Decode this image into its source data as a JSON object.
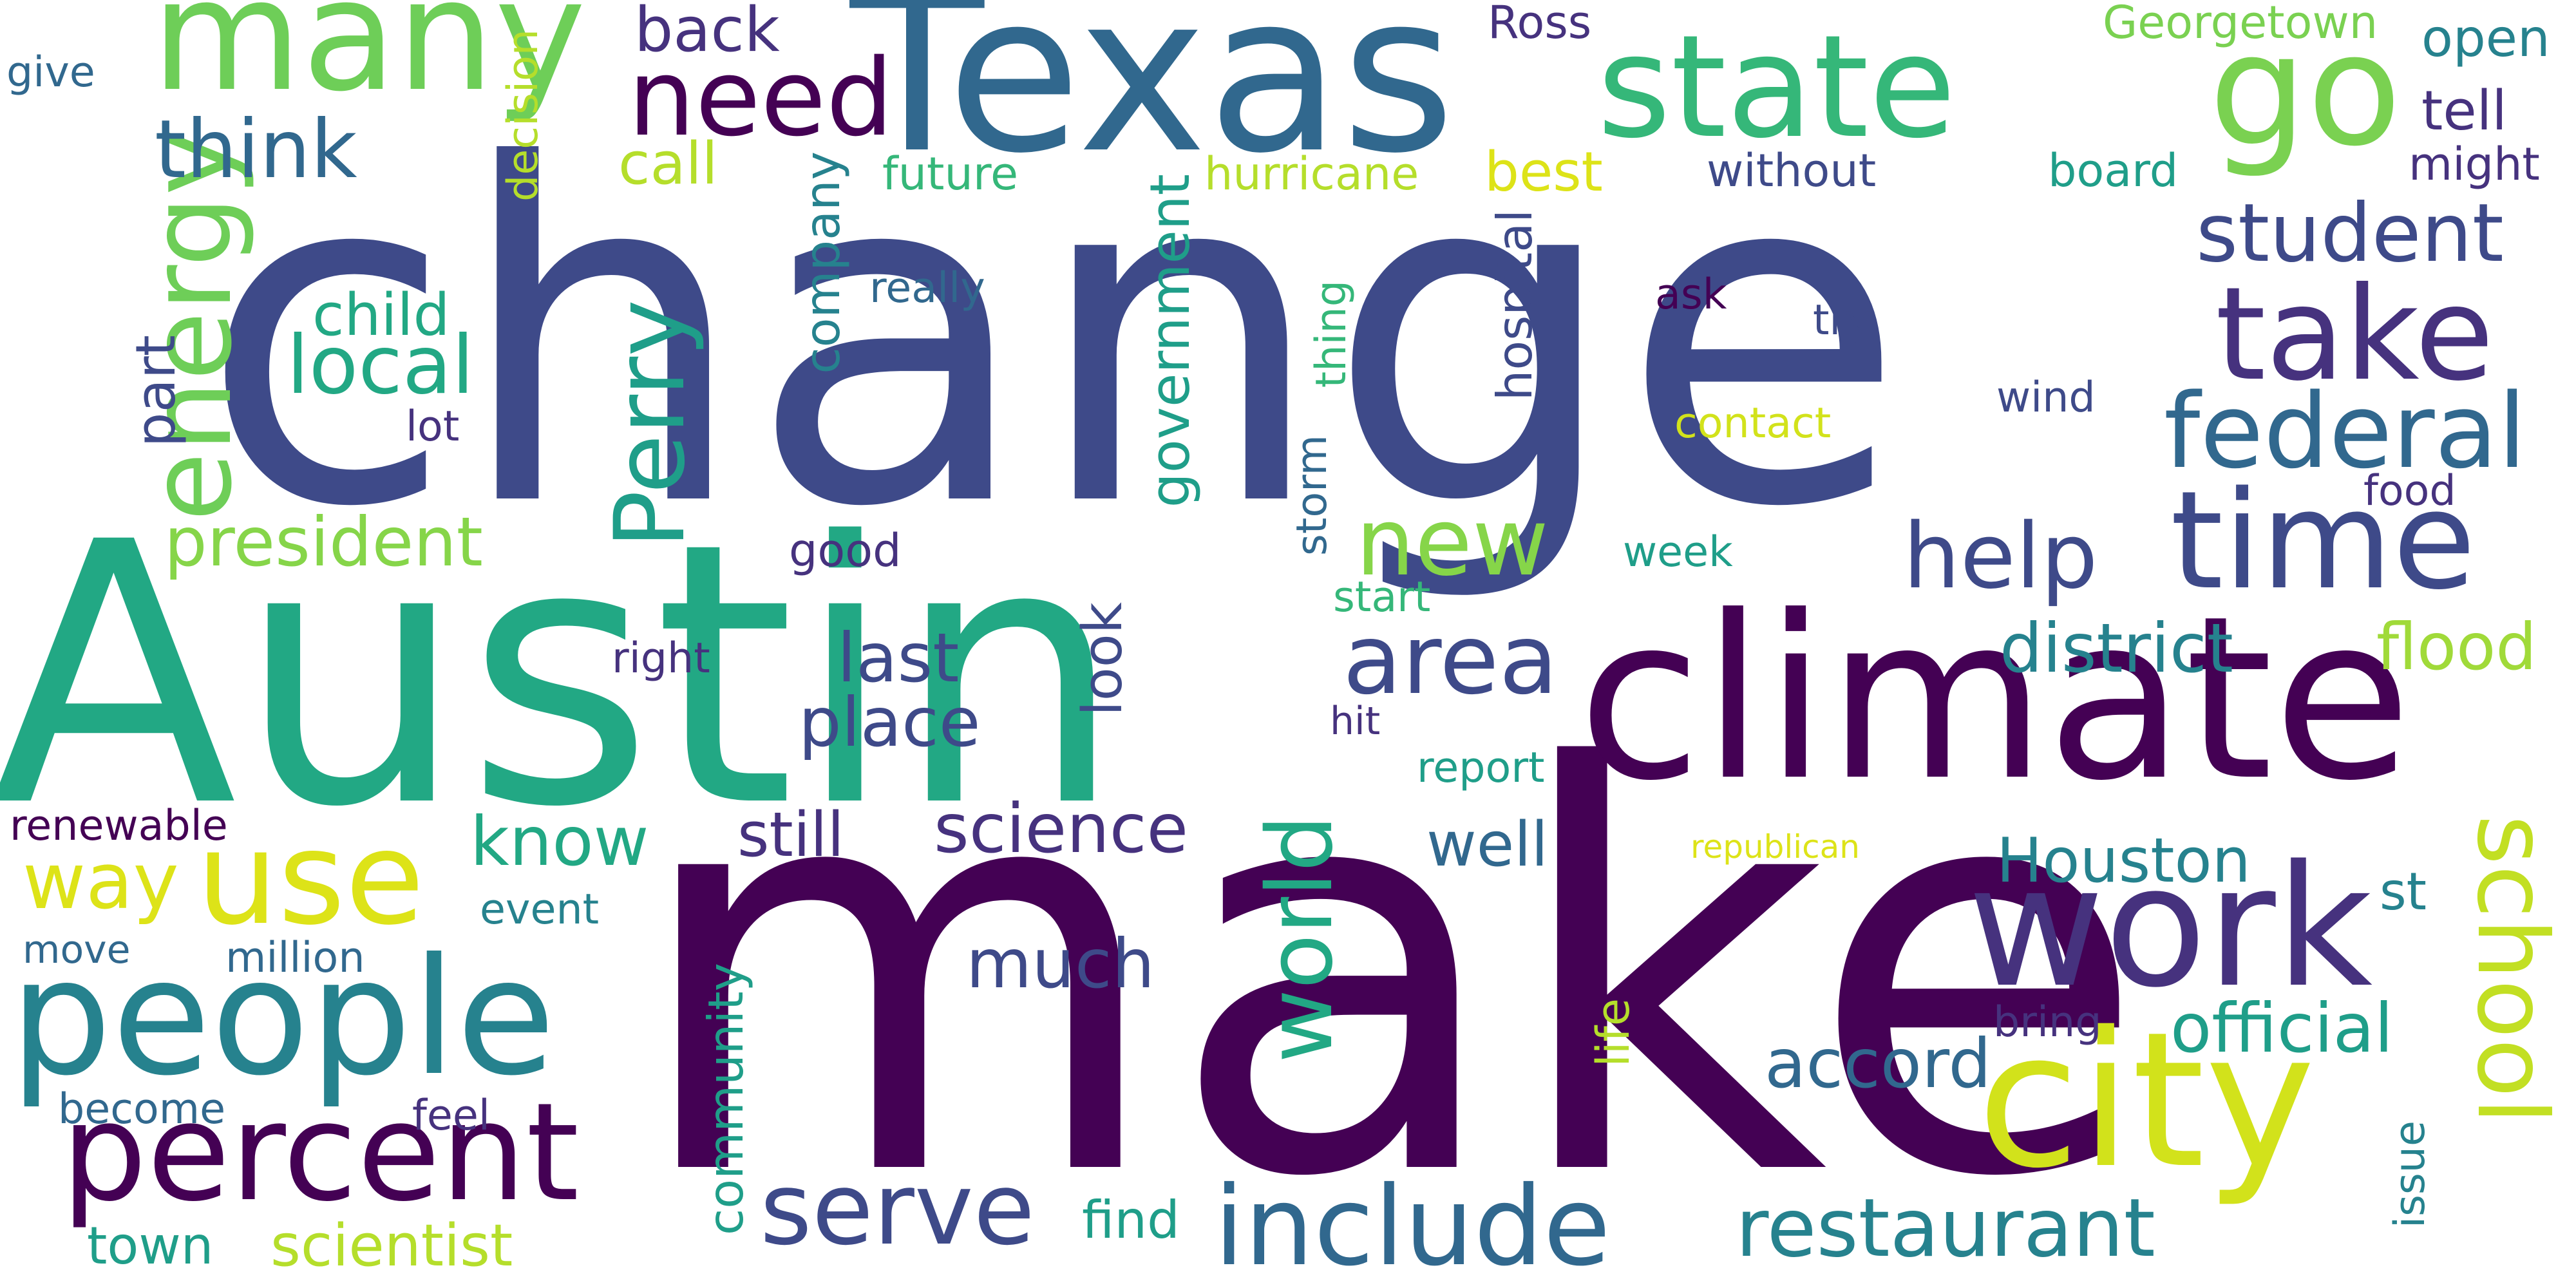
{
  "palette": {
    "deep_purple": "#440154",
    "indigo": "#46327e",
    "slate_blue": "#3e4a89",
    "blue": "#31688e",
    "teal": "#26828e",
    "teal_green": "#1f9e89",
    "green": "#35b779",
    "light_green": "#6ece58",
    "lime": "#b5de2b",
    "yellow": "#fde725"
  },
  "words": [
    {
      "text": "change",
      "color": "#3e4a89"
    },
    {
      "text": "make",
      "color": "#440154"
    },
    {
      "text": "Austin",
      "color": "#22a884"
    },
    {
      "text": "Texas",
      "color": "#31688e"
    },
    {
      "text": "climate",
      "color": "#440154"
    },
    {
      "text": "state",
      "color": "#35b779"
    },
    {
      "text": "many",
      "color": "#6ece58"
    },
    {
      "text": "go",
      "color": "#7ad151"
    },
    {
      "text": "city",
      "color": "#d2e21b"
    },
    {
      "text": "people",
      "color": "#26828e"
    },
    {
      "text": "work",
      "color": "#46327e"
    },
    {
      "text": "percent",
      "color": "#440154"
    },
    {
      "text": "take",
      "color": "#46327e"
    },
    {
      "text": "time",
      "color": "#3e4a89"
    },
    {
      "text": "include",
      "color": "#31688e"
    },
    {
      "text": "need",
      "color": "#440154"
    },
    {
      "text": "use",
      "color": "#dde318"
    },
    {
      "text": "federal",
      "color": "#31688e"
    },
    {
      "text": "new",
      "color": "#86d549"
    },
    {
      "text": "area",
      "color": "#3e4a89"
    },
    {
      "text": "serve",
      "color": "#3e4a89"
    },
    {
      "text": "energy",
      "color": "#6ece58"
    },
    {
      "text": "Perry",
      "color": "#1f9e89"
    },
    {
      "text": "restaurant",
      "color": "#26828e"
    },
    {
      "text": "student",
      "color": "#3e4a89"
    },
    {
      "text": "school",
      "color": "#c2df23"
    },
    {
      "text": "help",
      "color": "#3e4a89"
    },
    {
      "text": "world",
      "color": "#22a884"
    },
    {
      "text": "think",
      "color": "#31688e"
    },
    {
      "text": "local",
      "color": "#22a884"
    },
    {
      "text": "president",
      "color": "#86d549"
    },
    {
      "text": "way",
      "color": "#dde318"
    },
    {
      "text": "accord",
      "color": "#31688e"
    },
    {
      "text": "official",
      "color": "#1f9e89"
    },
    {
      "text": "district",
      "color": "#26828e"
    },
    {
      "text": "last",
      "color": "#3e4a89"
    },
    {
      "text": "place",
      "color": "#3e4a89"
    },
    {
      "text": "know",
      "color": "#22a884"
    },
    {
      "text": "science",
      "color": "#46327e"
    },
    {
      "text": "Houston",
      "color": "#26828e"
    },
    {
      "text": "flood",
      "color": "#a0da39"
    },
    {
      "text": "much",
      "color": "#3e4a89"
    },
    {
      "text": "well",
      "color": "#31688e"
    },
    {
      "text": "still",
      "color": "#46327e"
    },
    {
      "text": "scientist",
      "color": "#b5de2b"
    },
    {
      "text": "back",
      "color": "#46327e"
    },
    {
      "text": "child",
      "color": "#22a884"
    },
    {
      "text": "call",
      "color": "#b5de2b"
    },
    {
      "text": "best",
      "color": "#dde318"
    },
    {
      "text": "open",
      "color": "#26828e"
    },
    {
      "text": "tell",
      "color": "#46327e"
    },
    {
      "text": "might",
      "color": "#46327e"
    },
    {
      "text": "future",
      "color": "#35b779"
    },
    {
      "text": "hurricane",
      "color": "#b5de2b"
    },
    {
      "text": "without",
      "color": "#3e4a89"
    },
    {
      "text": "board",
      "color": "#1f9e89"
    },
    {
      "text": "Georgetown",
      "color": "#7ad151"
    },
    {
      "text": "Ross",
      "color": "#46327e"
    },
    {
      "text": "give",
      "color": "#31688e"
    },
    {
      "text": "decision",
      "color": "#b5de2b"
    },
    {
      "text": "company",
      "color": "#26828e"
    },
    {
      "text": "government",
      "color": "#1f9e89"
    },
    {
      "text": "hospital",
      "color": "#3e4a89"
    },
    {
      "text": "thing",
      "color": "#35b779"
    },
    {
      "text": "part",
      "color": "#3e4a89"
    },
    {
      "text": "really",
      "color": "#31688e"
    },
    {
      "text": "ask",
      "color": "#440154"
    },
    {
      "text": "try",
      "color": "#3e4a89"
    },
    {
      "text": "wind",
      "color": "#3e4a89"
    },
    {
      "text": "contact",
      "color": "#d2e21b"
    },
    {
      "text": "food",
      "color": "#46327e"
    },
    {
      "text": "lot",
      "color": "#46327e"
    },
    {
      "text": "storm",
      "color": "#31688e"
    },
    {
      "text": "start",
      "color": "#35b779"
    },
    {
      "text": "week",
      "color": "#1f9e89"
    },
    {
      "text": "good",
      "color": "#46327e"
    },
    {
      "text": "look",
      "color": "#3e4a89"
    },
    {
      "text": "right",
      "color": "#46327e"
    },
    {
      "text": "hit",
      "color": "#46327e"
    },
    {
      "text": "report",
      "color": "#1f9e89"
    },
    {
      "text": "republican",
      "color": "#dde318"
    },
    {
      "text": "renewable",
      "color": "#440154"
    },
    {
      "text": "event",
      "color": "#26828e"
    },
    {
      "text": "move",
      "color": "#31688e"
    },
    {
      "text": "million",
      "color": "#31688e"
    },
    {
      "text": "become",
      "color": "#31688e"
    },
    {
      "text": "feel",
      "color": "#46327e"
    },
    {
      "text": "town",
      "color": "#1f9e89"
    },
    {
      "text": "community",
      "color": "#1f9e89"
    },
    {
      "text": "find",
      "color": "#1f9e89"
    },
    {
      "text": "life",
      "color": "#b5de2b"
    },
    {
      "text": "issue",
      "color": "#26828e"
    },
    {
      "text": "bring",
      "color": "#46327e"
    },
    {
      "text": "st",
      "color": "#26828e"
    }
  ]
}
